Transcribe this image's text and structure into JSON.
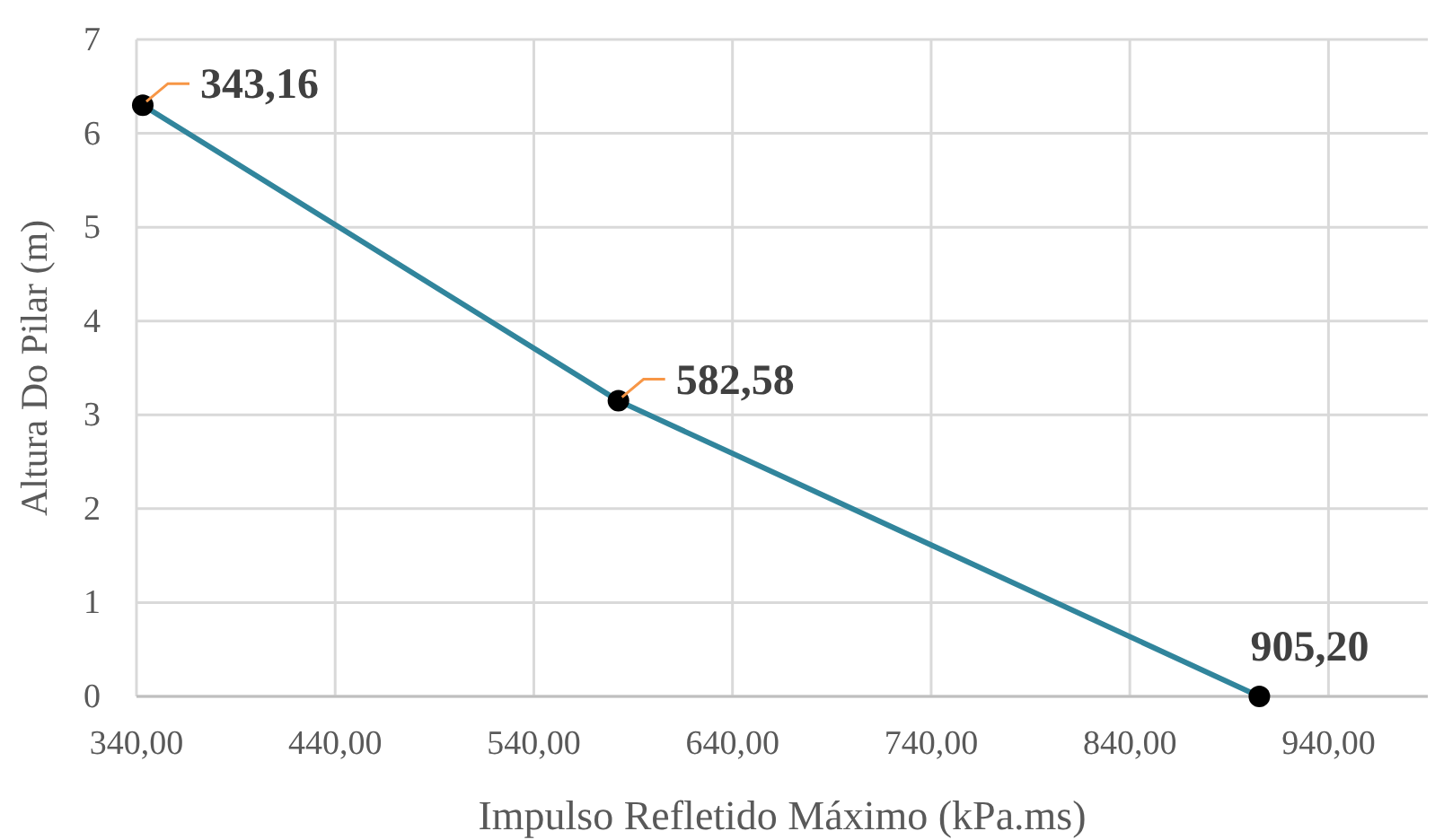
{
  "chart_data": {
    "type": "line",
    "xlabel": "Impulso Refletido Máximo (kPa.ms)",
    "ylabel": "Altura Do Pilar (m)",
    "x": [
      343.16,
      582.58,
      905.2
    ],
    "series": [
      {
        "color": "#31859c",
        "values": [
          6.3,
          3.15,
          0
        ]
      }
    ],
    "annotations": [
      {
        "text": "343,16",
        "x": 343.16,
        "y": 6.3
      },
      {
        "text": "582,58",
        "x": 582.58,
        "y": 3.15
      },
      {
        "text": "905,20",
        "x": 905.2,
        "y": 0
      }
    ],
    "xlim": [
      340,
      990
    ],
    "xticks": [
      {
        "value": 340,
        "label": "340,00"
      },
      {
        "value": 440,
        "label": "440,00"
      },
      {
        "value": 540,
        "label": "540,00"
      },
      {
        "value": 640,
        "label": "640,00"
      },
      {
        "value": 740,
        "label": "740,00"
      },
      {
        "value": 840,
        "label": "840,00"
      },
      {
        "value": 940,
        "label": "940,00"
      }
    ],
    "ylim": [
      0,
      7
    ],
    "yticks": [
      0,
      1,
      2,
      3,
      4,
      5,
      6,
      7
    ],
    "grid": true,
    "marker": "circle",
    "line_style": "solid"
  }
}
